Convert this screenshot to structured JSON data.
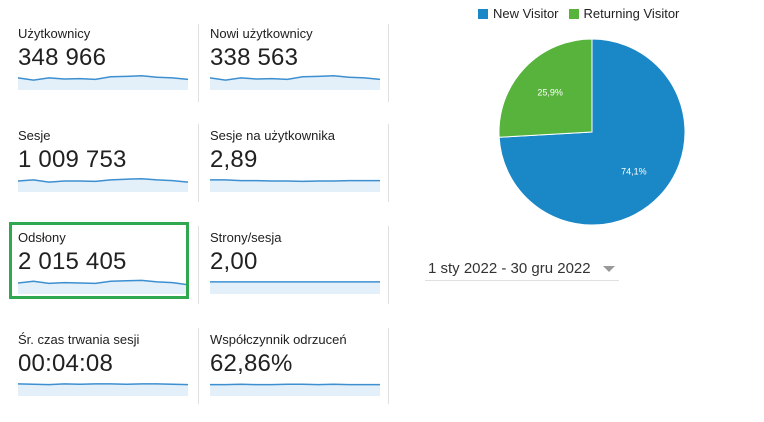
{
  "metrics": [
    {
      "label": "Użytkownicy",
      "value": "348 966",
      "spark": [
        0.55,
        0.45,
        0.55,
        0.5,
        0.52,
        0.48,
        0.6,
        0.62,
        0.65,
        0.58,
        0.55,
        0.48
      ]
    },
    {
      "label": "Nowi użytkownicy",
      "value": "338 563",
      "spark": [
        0.55,
        0.45,
        0.55,
        0.5,
        0.52,
        0.48,
        0.6,
        0.62,
        0.65,
        0.58,
        0.55,
        0.48
      ]
    },
    {
      "label": "Sesje",
      "value": "1 009 753",
      "spark": [
        0.5,
        0.55,
        0.45,
        0.5,
        0.5,
        0.48,
        0.55,
        0.58,
        0.6,
        0.55,
        0.52,
        0.45
      ]
    },
    {
      "label": "Sesje na użytkownika",
      "value": "2,89",
      "spark": [
        0.55,
        0.55,
        0.52,
        0.52,
        0.5,
        0.5,
        0.48,
        0.5,
        0.5,
        0.52,
        0.52,
        0.52
      ]
    },
    {
      "label": "Odsłony",
      "value": "2 015 405",
      "spark": [
        0.5,
        0.58,
        0.48,
        0.52,
        0.5,
        0.48,
        0.58,
        0.6,
        0.62,
        0.55,
        0.52,
        0.42
      ]
    },
    {
      "label": "Strony/sesja",
      "value": "2,00",
      "spark": [
        0.55,
        0.55,
        0.55,
        0.55,
        0.55,
        0.55,
        0.55,
        0.55,
        0.55,
        0.55,
        0.55,
        0.55
      ]
    },
    {
      "label": "Śr. czas trwania sesji",
      "value": "00:04:08",
      "spark": [
        0.55,
        0.53,
        0.52,
        0.55,
        0.53,
        0.55,
        0.55,
        0.53,
        0.55,
        0.55,
        0.53,
        0.52
      ]
    },
    {
      "label": "Współczynnik odrzuceń",
      "value": "62,86%",
      "spark": [
        0.52,
        0.52,
        0.53,
        0.52,
        0.52,
        0.53,
        0.53,
        0.52,
        0.53,
        0.52,
        0.52,
        0.52
      ]
    }
  ],
  "legend": {
    "new_label": "New Visitor",
    "returning_label": "Returning Visitor"
  },
  "colors": {
    "new": "#1a87c6",
    "returning": "#58b33d",
    "spark_line": "#3d8fd0",
    "spark_fill": "#e3f0fa",
    "highlight": "#2fa84f"
  },
  "chart_data": {
    "type": "pie",
    "categories": [
      "New Visitor",
      "Returning Visitor"
    ],
    "values": [
      74.1,
      25.9
    ],
    "data_labels": [
      "74,1%",
      "25,9%"
    ]
  },
  "date_range": {
    "label": "1 sty 2022 - 30 gru 2022"
  }
}
